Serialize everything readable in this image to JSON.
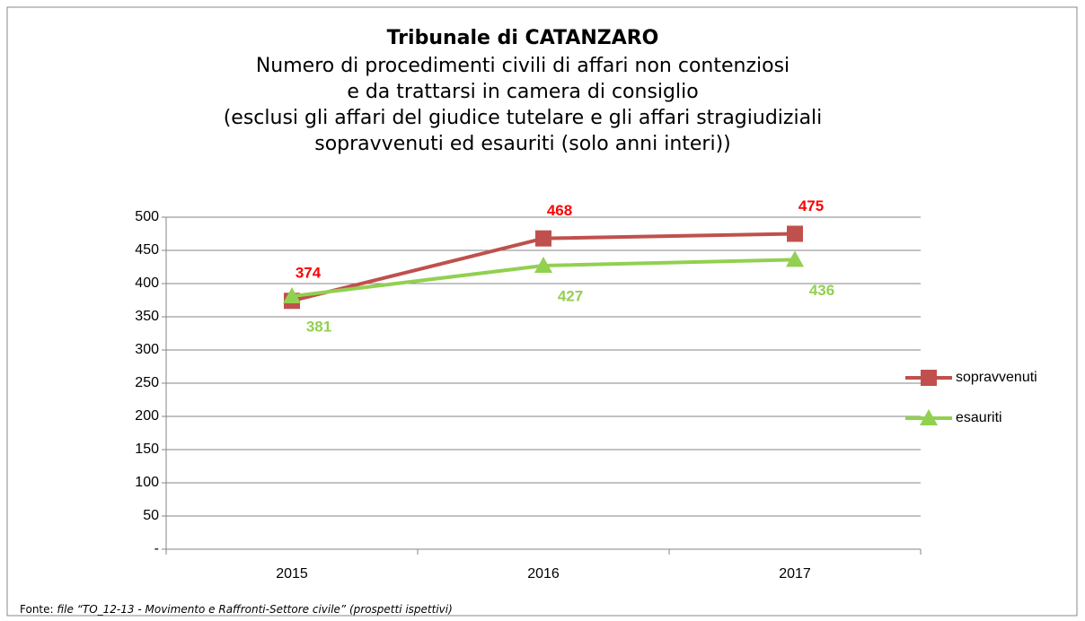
{
  "chart_data": {
    "type": "line",
    "title": "Tribunale di CATANZARO",
    "subtitle": [
      "Numero di procedimenti civili di affari non contenziosi",
      "e da trattarsi in camera di consiglio",
      "(esclusi gli affari del giudice tutelare e gli affari stragiudiziali",
      "sopravvenuti ed esauriti (solo anni interi))"
    ],
    "categories": [
      "2015",
      "2016",
      "2017"
    ],
    "series": [
      {
        "name": "sopravvenuti",
        "color": "#c0504d",
        "values": [
          374,
          468,
          475
        ]
      },
      {
        "name": "esauriti",
        "color": "#92d050",
        "values": [
          381,
          427,
          436
        ]
      }
    ],
    "ylim": [
      0,
      500
    ],
    "yticks": [
      {
        "value": 0,
        "label": "-"
      },
      50,
      100,
      150,
      200,
      250,
      300,
      350,
      400,
      450,
      500
    ],
    "grid": true,
    "legend": "right",
    "source_label": "Fonte:",
    "source": "file “TO_12-13 - Movimento e Raffronti-Settore civile” (prospetti ispettivi)"
  }
}
